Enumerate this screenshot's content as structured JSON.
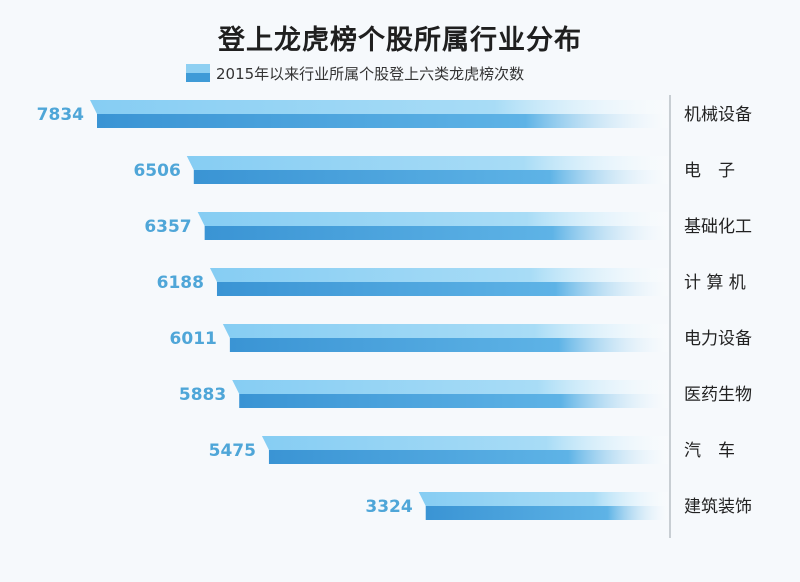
{
  "chart_data": {
    "type": "bar",
    "orientation": "horizontal",
    "title": "登上龙虎榜个股所属行业分布",
    "legend": "2015年以来行业所属个股登上六类龙虎榜次数",
    "categories": [
      "机械设备",
      "电　子",
      "基础化工",
      "计 算 机",
      "电力设备",
      "医药生物",
      "汽　车",
      "建筑装饰"
    ],
    "values": [
      7834,
      6506,
      6357,
      6188,
      6011,
      5883,
      5475,
      3324
    ],
    "xlim": [
      0,
      7834
    ],
    "colors": {
      "bar_top": "#92d2f3",
      "bar_bottom": "#3d98d6",
      "value_text": "#4fa6d8"
    }
  }
}
